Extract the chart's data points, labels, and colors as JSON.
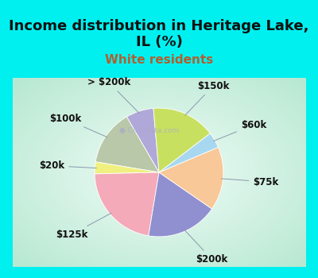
{
  "title": "Income distribution in Heritage Lake,\nIL (%)",
  "subtitle": "White residents",
  "labels": [
    "> $200k",
    "$100k",
    "$20k",
    "$125k",
    "$200k",
    "$75k",
    "$60k",
    "$150k"
  ],
  "sizes": [
    7,
    14,
    3,
    22,
    18,
    16,
    4,
    16
  ],
  "colors": [
    "#b0a8d8",
    "#b8c8a8",
    "#f0f080",
    "#f4aab8",
    "#9090d0",
    "#f8c898",
    "#a8d8f0",
    "#c8e060"
  ],
  "bg_cyan": "#00f0f0",
  "bg_chart_outer": "#b8e8d0",
  "bg_chart_inner": "#f0faf8",
  "title_fontsize": 13,
  "subtitle_fontsize": 11,
  "subtitle_color": "#b06030",
  "label_fontsize": 8.5,
  "startangle": 95,
  "watermark": "City-Data.com"
}
